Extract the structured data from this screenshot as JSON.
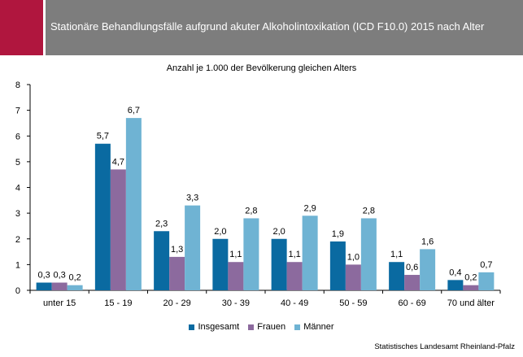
{
  "header": {
    "title": "Stationäre Behandlungsfälle aufgrund akuter Alkoholintoxikation (ICD F10.0) 2015 nach Alter",
    "accent_color": "#b0163e",
    "bar_color": "#7d7d7d"
  },
  "source": "Statistisches Landesamt Rheinland-Pfalz",
  "chart_data": {
    "type": "bar",
    "title": "Anzahl je 1.000 der Bevölkerung gleichen Alters",
    "xlabel": "",
    "ylabel": "",
    "ylim": [
      0,
      8
    ],
    "yticks": [
      "0",
      "1",
      "2",
      "3",
      "4",
      "5",
      "6",
      "7",
      "8"
    ],
    "grid": false,
    "legend_position": "bottom",
    "categories": [
      "unter 15",
      "15 - 19",
      "20 - 29",
      "30 - 39",
      "40 - 49",
      "50 - 59",
      "60 - 69",
      "70 und älter"
    ],
    "series": [
      {
        "name": "Insgesamt",
        "color": "#0a6aa1",
        "values": [
          0.3,
          5.7,
          2.3,
          2.0,
          2.0,
          1.9,
          1.1,
          0.4
        ],
        "labels": [
          "0,3",
          "5,7",
          "2,3",
          "2,0",
          "2,0",
          "1,9",
          "1,1",
          "0,4"
        ]
      },
      {
        "name": "Frauen",
        "color": "#8c6a9e",
        "values": [
          0.3,
          4.7,
          1.3,
          1.1,
          1.1,
          1.0,
          0.6,
          0.2
        ],
        "labels": [
          "0,3",
          "4,7",
          "1,3",
          "1,1",
          "1,1",
          "1,0",
          "0,6",
          "0,2"
        ]
      },
      {
        "name": "Männer",
        "color": "#6fb3d3",
        "values": [
          0.2,
          6.7,
          3.3,
          2.8,
          2.9,
          2.8,
          1.6,
          0.7
        ],
        "labels": [
          "0,2",
          "6,7",
          "3,3",
          "2,8",
          "2,9",
          "2,8",
          "1,6",
          "0,7"
        ]
      }
    ]
  }
}
